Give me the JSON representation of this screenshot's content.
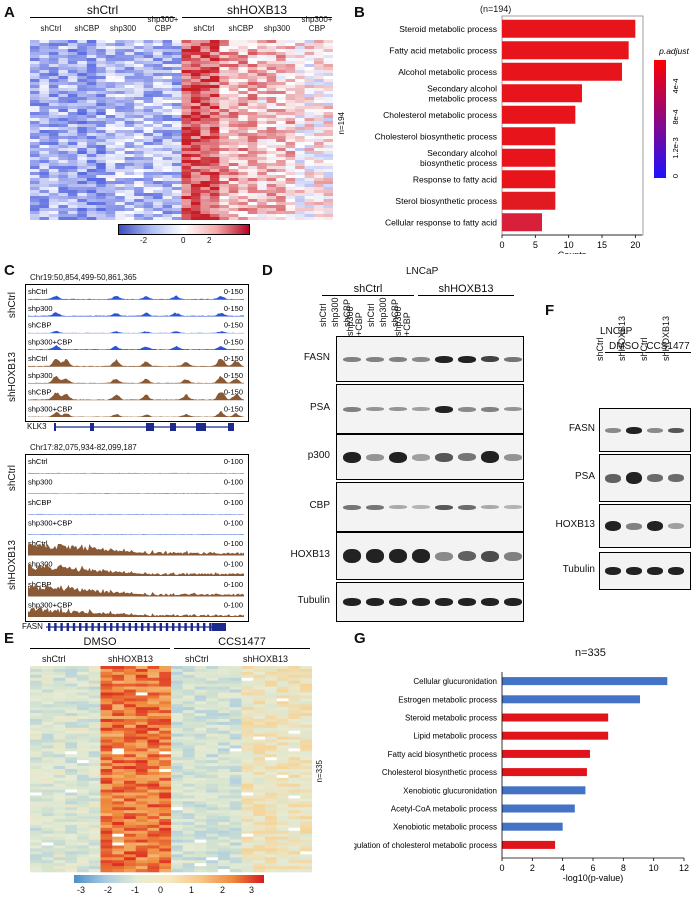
{
  "panels": {
    "A": {
      "letter": "A",
      "group_labels": [
        "shCtrl",
        "shHOXB13"
      ],
      "column_labels": [
        "shCtrl",
        "shCBP",
        "shp300",
        "shp300+\nCBP",
        "shCtrl",
        "shCBP",
        "shp300",
        "shp300+\nCBP"
      ],
      "n_label": "n=194",
      "scale_ticks": [
        "-2",
        "0",
        "2"
      ],
      "colors": {
        "low": "#3b4cc0",
        "mid": "#ffffff",
        "high": "#b40426"
      }
    },
    "B": {
      "letter": "B",
      "n_label": "(n=194)",
      "legend_title": "p.adjust",
      "legend_ticks": [
        "4e-4",
        "8e-4",
        "1.2e-3",
        "0"
      ],
      "x_ticks": [
        "0",
        "5",
        "10",
        "15",
        "20"
      ],
      "colors": {
        "bar_top": "#e8141b",
        "bar_low": "#d9202f",
        "legend_high": "#ff0000",
        "legend_low": "#1f10ff"
      }
    },
    "C": {
      "letter": "C",
      "locus1": "Chr19:50,854,499-50,861,365",
      "locus2": "Chr17:82,075,934-82,099,187",
      "gene1": "KLK3",
      "gene2": "FASN",
      "group_labels": [
        "shCtrl",
        "shHOXB13"
      ],
      "tracks": [
        "shCtrl",
        "shp300",
        "shCBP",
        "shp300+CBP",
        "shCtrl",
        "shp300",
        "shCBP",
        "shp300+CBP"
      ],
      "range1": "0-150",
      "range2": "0-100",
      "colors": {
        "blue": "#2b55d6",
        "brown": "#8a5a36",
        "gene": "#1b2a8c"
      }
    },
    "D": {
      "letter": "D",
      "cell_line": "LNCaP",
      "group_labels": [
        "shCtrl",
        "shHOXB13"
      ],
      "lanes": [
        "shCtrl",
        "shp300",
        "shCBP",
        "shp300\n+CBP",
        "shCtrl",
        "shp300",
        "shCBP",
        "shp300\n+CBP"
      ],
      "blots": [
        "FASN",
        "PSA",
        "p300",
        "CBP",
        "HOXB13",
        "Tubulin"
      ]
    },
    "E": {
      "letter": "E",
      "group_labels": [
        "DMSO",
        "CCS1477"
      ],
      "column_labels": [
        "shCtrl",
        "shHOXB13",
        "shCtrl",
        "shHOXB13"
      ],
      "n_label": "n=335",
      "scale_ticks": [
        "-3",
        "-2",
        "-1",
        "0",
        "1",
        "2",
        "3"
      ]
    },
    "F": {
      "letter": "F",
      "cell_line": "LNCaP",
      "group_labels": [
        "DMSO",
        "CCS1477"
      ],
      "lanes": [
        "shCtrl",
        "shHOXB13",
        "shCtrl",
        "shHOXB13"
      ],
      "blots": [
        "FASN",
        "PSA",
        "HOXB13",
        "Tubulin"
      ]
    },
    "G": {
      "letter": "G",
      "n_label": "n=335",
      "x_ticks": [
        "0",
        "2",
        "4",
        "6",
        "8",
        "10",
        "12"
      ],
      "colors": {
        "blue": "#4472c4",
        "red": "#e0141b"
      }
    }
  },
  "chart_data": [
    {
      "type": "bar",
      "orientation": "horizontal",
      "panel": "B",
      "categories": [
        "Steroid metabolic process",
        "Fatty acid metabolic process",
        "Alcohol metabolic process",
        "Secondary alcohol metabolic process",
        "Cholesterol metabolic process",
        "Cholesterol biosynthetic process",
        "Secondary alcohol biosynthetic process",
        "Response to fatty acid",
        "Sterol biosynthetic process",
        "Cellular response to fatty acid"
      ],
      "values": [
        20,
        19,
        18,
        12,
        11,
        8,
        8,
        8,
        8,
        6
      ],
      "title": "(n=194)",
      "xlabel": "Counts",
      "ylabel": "",
      "xlim": [
        0,
        21
      ],
      "legend": "right"
    },
    {
      "type": "bar",
      "orientation": "horizontal",
      "panel": "G",
      "categories": [
        "Cellular glucuronidation",
        "Estrogen metabolic process",
        "Steroid metabolic process",
        "Lipid metabolic process",
        "Fatty acid biosynthetic process",
        "Cholesterol biosynthetic process",
        "Xenobiotic glucuronidation",
        "Acetyl-CoA metabolic process",
        "Xenobiotic metabolic process",
        "Regulation of cholesterol metabolic process"
      ],
      "values": [
        10.9,
        9.1,
        7.0,
        7.0,
        5.8,
        5.6,
        5.5,
        4.8,
        4.0,
        3.5
      ],
      "colors": [
        "blue",
        "blue",
        "red",
        "red",
        "red",
        "red",
        "blue",
        "blue",
        "blue",
        "red"
      ],
      "title": "n=335",
      "xlabel": "-log10(p-value)",
      "ylabel": "",
      "xlim": [
        0,
        12
      ]
    }
  ]
}
